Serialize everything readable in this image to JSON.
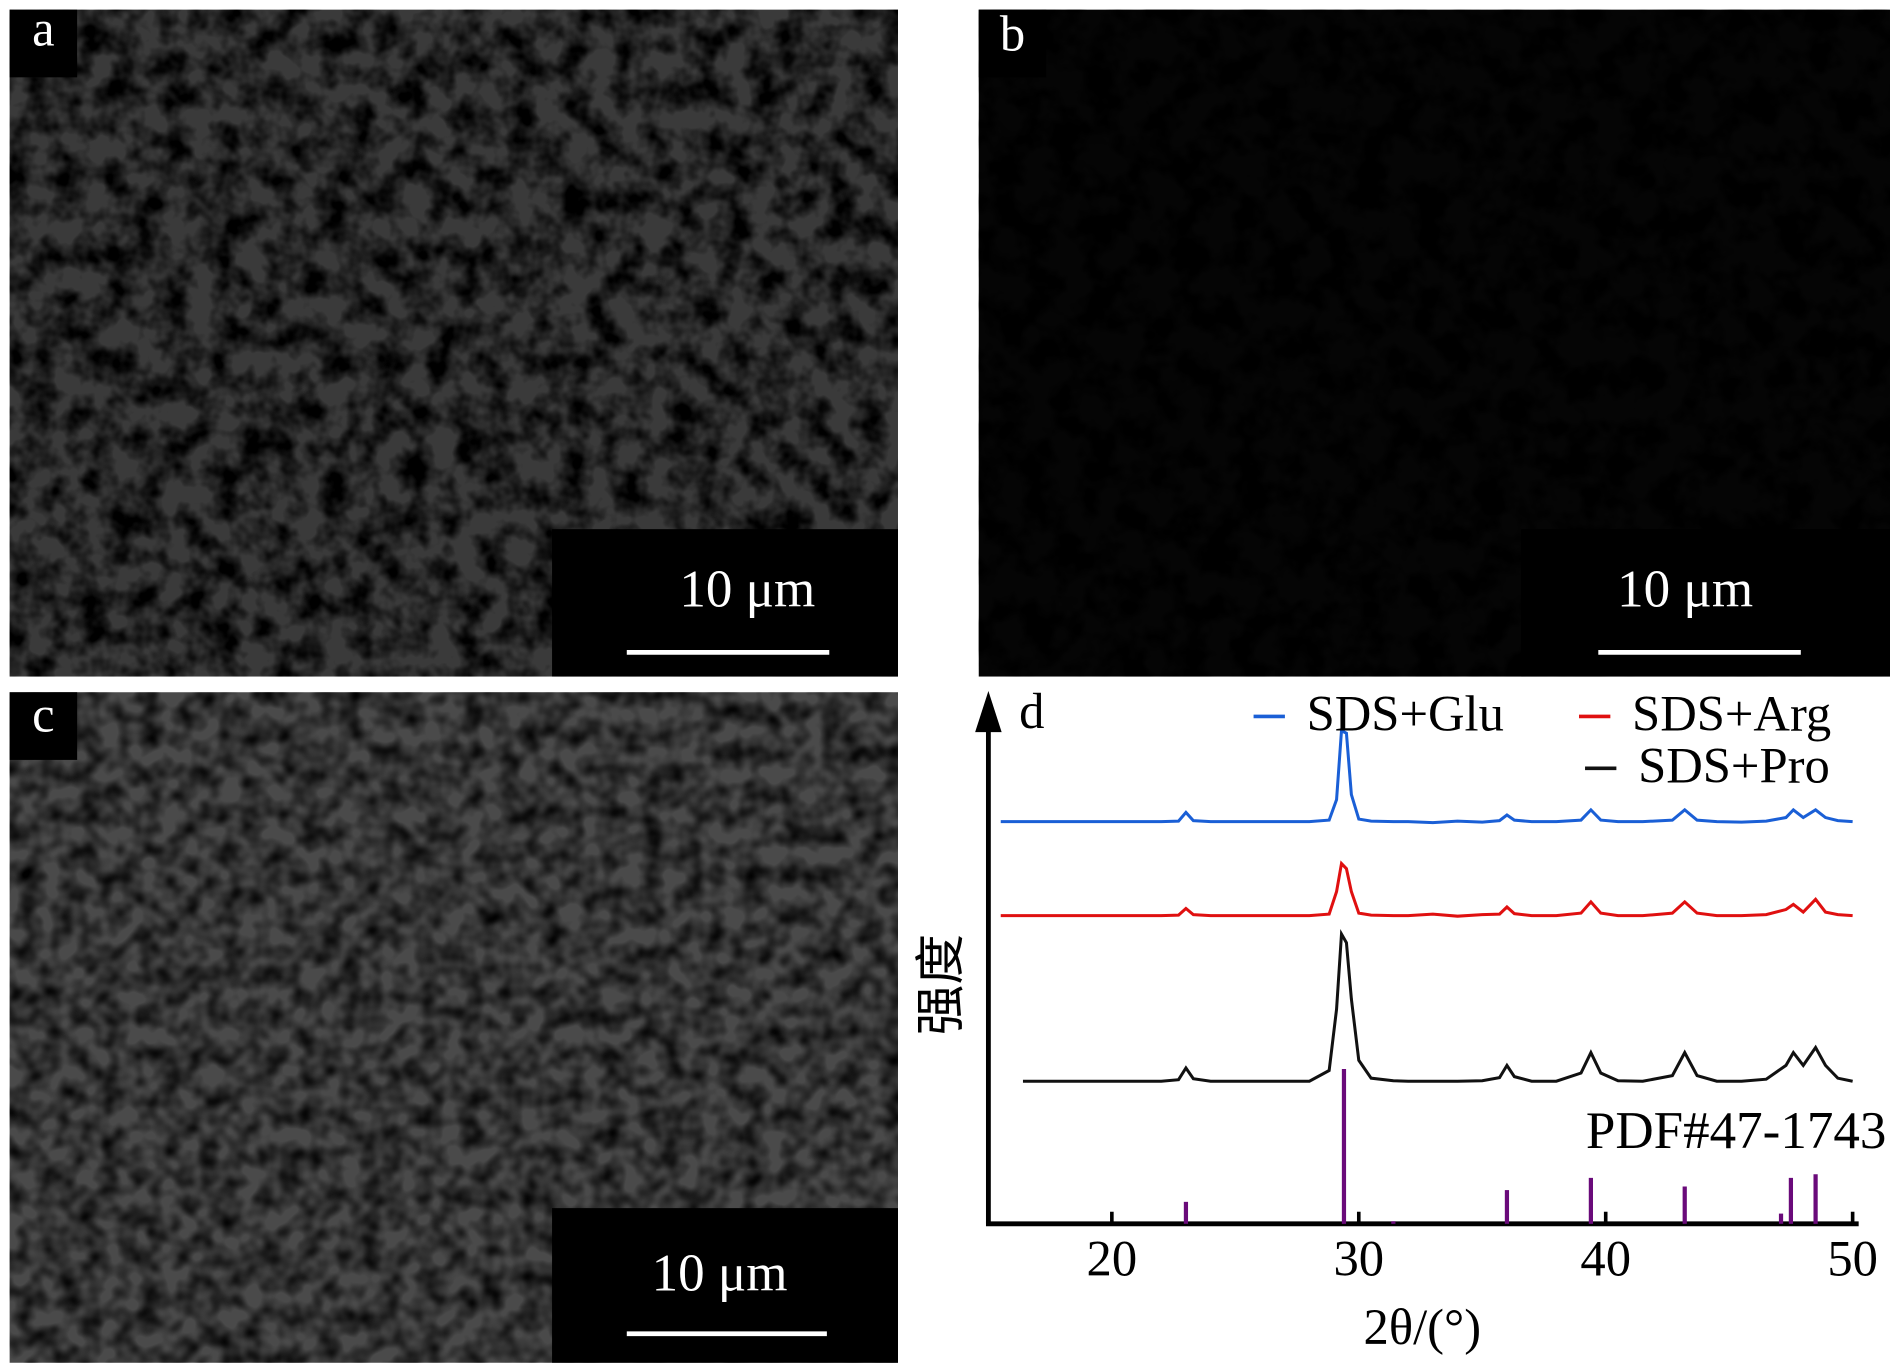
{
  "panels": [
    {
      "label": "a",
      "scale_bar": "10 μm"
    },
    {
      "label": "b",
      "scale_bar": "10 μm"
    },
    {
      "label": "c",
      "scale_bar": "10 μm"
    }
  ],
  "chart_data": {
    "type": "line",
    "label": "d",
    "xlabel": "2θ/(°)",
    "ylabel": "强度",
    "xlim": [
      15,
      50
    ],
    "xticks": [
      20,
      30,
      40,
      50
    ],
    "ylim": [
      0,
      100
    ],
    "x": [
      15.5,
      16.4,
      17,
      18,
      19,
      20,
      21,
      22,
      22.7,
      23.0,
      23.3,
      24,
      25,
      26,
      27,
      28,
      28.8,
      29.1,
      29.3,
      29.5,
      29.7,
      30.0,
      30.5,
      31.4,
      32,
      33,
      34,
      35,
      35.7,
      36.0,
      36.3,
      37,
      38,
      39.0,
      39.4,
      39.8,
      40.5,
      41.5,
      42.7,
      43.2,
      43.7,
      44.5,
      45.5,
      46.5,
      47.3,
      47.6,
      48.0,
      48.5,
      48.9,
      49.4,
      50
    ],
    "series": [
      {
        "name": "SDS+Glu",
        "color": "#1a5fd6",
        "values": [
          78.7,
          78.7,
          78.7,
          78.7,
          78.7,
          78.7,
          78.7,
          78.7,
          78.8,
          80.5,
          78.9,
          78.7,
          78.7,
          78.7,
          78.7,
          78.7,
          79,
          83,
          96.5,
          96,
          84,
          79.2,
          78.8,
          78.7,
          78.7,
          78.5,
          78.8,
          78.6,
          78.9,
          80,
          79,
          78.7,
          78.7,
          79,
          81,
          79,
          78.7,
          78.7,
          79,
          81,
          79,
          78.7,
          78.6,
          78.8,
          79.5,
          81,
          79.5,
          81,
          79.5,
          78.9,
          78.7
        ]
      },
      {
        "name": "SDS+Arg",
        "color": "#e01010",
        "values": [
          60.3,
          60.3,
          60.3,
          60.3,
          60.3,
          60.3,
          60.3,
          60.3,
          60.4,
          61.7,
          60.5,
          60.3,
          60.3,
          60.3,
          60.3,
          60.3,
          60.6,
          65,
          70.5,
          69.5,
          65,
          60.8,
          60.4,
          60.3,
          60.3,
          60.6,
          60.2,
          60.5,
          60.6,
          62,
          60.7,
          60.3,
          60.3,
          60.8,
          63,
          60.8,
          60.3,
          60.3,
          60.8,
          63,
          60.8,
          60.3,
          60.3,
          60.5,
          61.5,
          62.5,
          61,
          63.5,
          61,
          60.5,
          60.3
        ]
      },
      {
        "name": "SDS+Pro",
        "color": "#111111",
        "values": [
          null,
          27.9,
          27.9,
          27.9,
          27.9,
          27.9,
          27.9,
          27.9,
          28.2,
          30.5,
          28.4,
          27.9,
          27.9,
          27.9,
          27.9,
          27.9,
          30,
          42,
          56.7,
          55,
          44,
          32,
          28.5,
          28,
          27.9,
          27.9,
          27.9,
          28,
          28.6,
          31,
          28.8,
          27.9,
          27.9,
          29.5,
          33.5,
          29.5,
          28,
          27.9,
          29,
          33.5,
          29,
          27.9,
          27.9,
          28.3,
          31,
          33.5,
          31,
          34.5,
          31,
          28.5,
          27.9
        ]
      }
    ],
    "reference": {
      "name": "PDF#47-1743",
      "color": "#6a0a7a",
      "x": [
        23.0,
        29.4,
        31.4,
        36.0,
        39.4,
        43.2,
        47.1,
        47.5,
        48.5
      ],
      "values": [
        4.3,
        30.3,
        0.5,
        6.6,
        9,
        7.3,
        2,
        9,
        9.7
      ]
    }
  }
}
